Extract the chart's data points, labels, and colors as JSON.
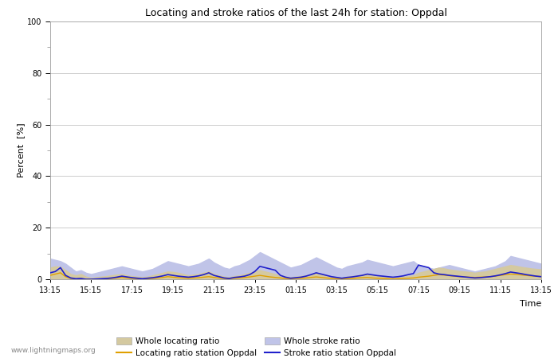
{
  "title": "Locating and stroke ratios of the last 24h for station: Oppdal",
  "ylabel": "Percent  [%]",
  "xlabel": "Time",
  "xlim": [
    0,
    96
  ],
  "ylim": [
    0,
    100
  ],
  "yticks_major": [
    0,
    20,
    40,
    60,
    80,
    100
  ],
  "xtick_labels": [
    "13:15",
    "15:15",
    "17:15",
    "19:15",
    "21:15",
    "23:15",
    "01:15",
    "03:15",
    "05:15",
    "07:15",
    "09:15",
    "11:15",
    "13:15"
  ],
  "xtick_positions": [
    0,
    8,
    16,
    24,
    32,
    40,
    48,
    56,
    64,
    72,
    80,
    88,
    96
  ],
  "fill_locating_color": "#d4c9a0",
  "fill_stroke_color": "#c0c4e8",
  "line_locating_color": "#e0a000",
  "line_stroke_color": "#2020cc",
  "watermark": "www.lightningmaps.org",
  "background_color": "#ffffff",
  "plot_bg_color": "#ffffff",
  "grid_color": "#cccccc",
  "whole_locating": [
    4.5,
    5.0,
    4.8,
    3.5,
    2.0,
    1.5,
    2.0,
    1.0,
    0.5,
    0.8,
    1.0,
    1.2,
    1.5,
    1.8,
    2.0,
    1.5,
    1.2,
    1.0,
    0.8,
    1.0,
    1.5,
    2.0,
    2.5,
    3.0,
    2.8,
    2.5,
    2.0,
    1.5,
    1.8,
    2.0,
    2.5,
    3.0,
    2.0,
    1.5,
    1.0,
    0.8,
    1.2,
    1.5,
    2.0,
    2.5,
    3.0,
    3.5,
    3.0,
    2.5,
    2.0,
    1.5,
    1.0,
    0.8,
    1.0,
    1.2,
    1.5,
    2.0,
    2.5,
    2.0,
    1.5,
    1.0,
    0.8,
    0.6,
    1.0,
    1.2,
    1.5,
    1.8,
    2.0,
    1.5,
    1.2,
    1.0,
    0.8,
    0.6,
    0.8,
    1.0,
    1.2,
    1.5,
    2.5,
    3.0,
    3.5,
    4.0,
    4.5,
    4.2,
    3.8,
    3.5,
    3.2,
    3.0,
    2.8,
    2.5,
    2.8,
    3.0,
    3.5,
    4.0,
    4.5,
    5.0,
    5.5,
    5.2,
    4.8,
    4.5,
    4.2,
    4.0,
    3.8
  ],
  "whole_stroke": [
    8.0,
    7.5,
    7.0,
    6.0,
    4.5,
    3.0,
    3.5,
    2.5,
    2.0,
    2.5,
    3.0,
    3.5,
    4.0,
    4.5,
    5.0,
    4.5,
    4.0,
    3.5,
    3.0,
    3.5,
    4.0,
    5.0,
    6.0,
    7.0,
    6.5,
    6.0,
    5.5,
    5.0,
    5.5,
    6.0,
    7.0,
    8.0,
    6.5,
    5.5,
    4.5,
    4.0,
    5.0,
    5.5,
    6.5,
    7.5,
    9.0,
    10.5,
    9.5,
    8.5,
    7.5,
    6.5,
    5.5,
    4.5,
    5.0,
    5.5,
    6.5,
    7.5,
    8.5,
    7.5,
    6.5,
    5.5,
    4.5,
    4.0,
    5.0,
    5.5,
    6.0,
    6.5,
    7.5,
    7.0,
    6.5,
    6.0,
    5.5,
    5.0,
    5.5,
    6.0,
    6.5,
    7.0,
    5.5,
    5.0,
    4.5,
    4.0,
    4.5,
    5.0,
    5.5,
    5.0,
    4.5,
    4.0,
    3.5,
    3.0,
    3.5,
    4.0,
    4.5,
    5.0,
    6.0,
    7.0,
    9.0,
    8.5,
    8.0,
    7.5,
    7.0,
    6.5,
    6.0
  ],
  "locating_station": [
    1.5,
    2.0,
    2.5,
    1.0,
    0.3,
    0.1,
    0.2,
    0.0,
    0.0,
    0.0,
    0.1,
    0.2,
    0.3,
    0.5,
    0.7,
    0.5,
    0.3,
    0.2,
    0.1,
    0.2,
    0.3,
    0.5,
    0.7,
    1.0,
    0.8,
    0.6,
    0.5,
    0.4,
    0.5,
    0.6,
    0.8,
    1.0,
    0.7,
    0.5,
    0.3,
    0.2,
    0.4,
    0.5,
    0.7,
    0.9,
    1.2,
    1.5,
    1.2,
    0.9,
    0.7,
    0.5,
    0.3,
    0.2,
    0.3,
    0.4,
    0.5,
    0.7,
    0.9,
    0.7,
    0.5,
    0.3,
    0.2,
    0.1,
    0.2,
    0.3,
    0.5,
    0.6,
    0.7,
    0.5,
    0.4,
    0.3,
    0.2,
    0.1,
    0.2,
    0.3,
    0.4,
    0.5,
    0.8,
    1.0,
    1.2,
    1.5,
    1.8,
    1.6,
    1.4,
    1.2,
    1.0,
    0.9,
    0.8,
    0.7,
    0.8,
    0.9,
    1.0,
    1.2,
    1.5,
    1.8,
    2.0,
    1.9,
    1.7,
    1.5,
    1.3,
    1.2,
    1.0
  ],
  "stroke_station": [
    2.5,
    3.0,
    4.5,
    1.5,
    0.5,
    0.2,
    0.3,
    0.0,
    0.0,
    0.1,
    0.2,
    0.3,
    0.5,
    0.8,
    1.2,
    0.9,
    0.6,
    0.4,
    0.2,
    0.4,
    0.6,
    0.9,
    1.3,
    1.8,
    1.5,
    1.2,
    1.0,
    0.8,
    1.0,
    1.3,
    1.8,
    2.5,
    1.5,
    1.0,
    0.5,
    0.3,
    0.7,
    0.9,
    1.2,
    1.8,
    3.0,
    5.0,
    4.5,
    4.0,
    3.5,
    1.5,
    0.8,
    0.4,
    0.6,
    0.8,
    1.2,
    1.8,
    2.5,
    2.0,
    1.5,
    1.0,
    0.7,
    0.4,
    0.7,
    0.9,
    1.2,
    1.5,
    2.0,
    1.7,
    1.4,
    1.2,
    1.0,
    0.8,
    1.0,
    1.3,
    1.8,
    2.2,
    5.5,
    5.0,
    4.5,
    2.5,
    2.0,
    1.8,
    1.5,
    1.3,
    1.1,
    0.9,
    0.7,
    0.5,
    0.6,
    0.8,
    1.0,
    1.3,
    1.7,
    2.2,
    2.8,
    2.5,
    2.2,
    1.8,
    1.5,
    1.2,
    1.0
  ]
}
